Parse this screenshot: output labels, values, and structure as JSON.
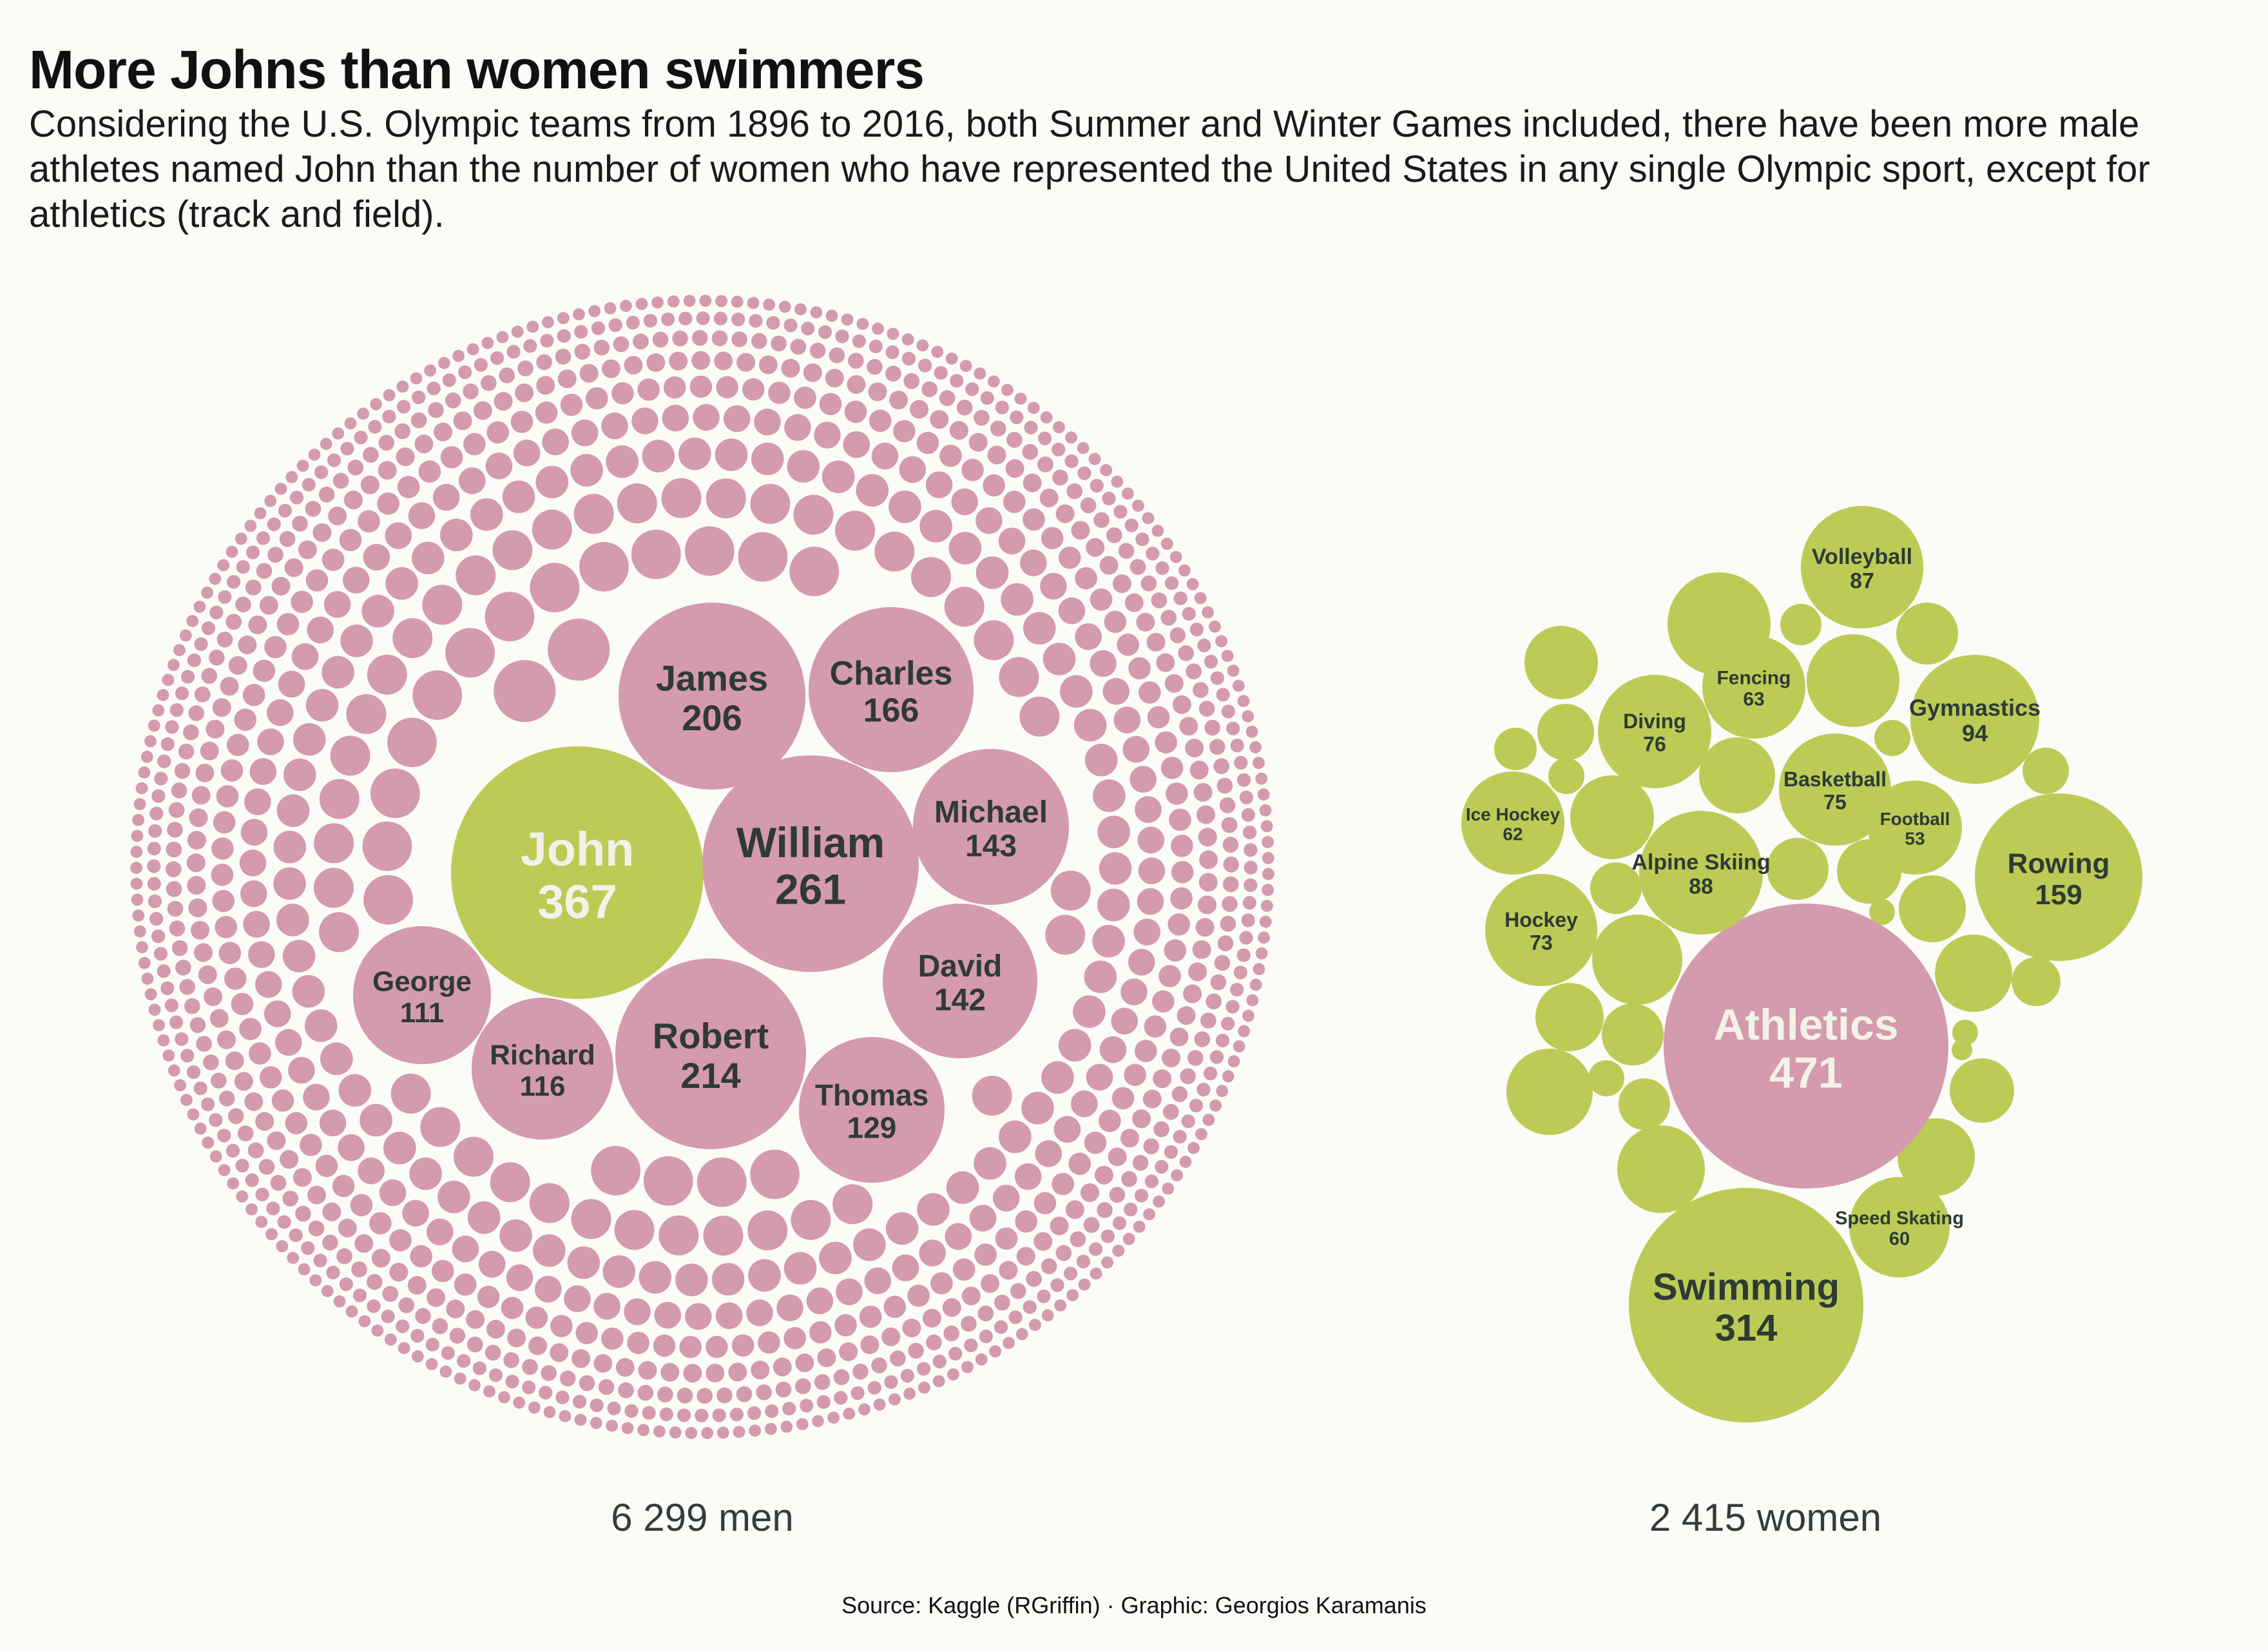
{
  "header": {
    "title": "More Johns than women swimmers",
    "subtitle": "Considering the U.S. Olympic teams from 1896 to 2016, both Summer and Winter Games included, there have been more male athletes named John than the number of women who have represented the United States in any single Olympic sport, except for athletics (track and field)."
  },
  "colors": {
    "pink": "#d49aae",
    "green": "#bccb55",
    "dark_text": "#2f3a35",
    "light_text": "#f2f2e8"
  },
  "chart_data": [
    {
      "type": "bubble",
      "total_label": "6 299 men",
      "highlight": "John",
      "labeled": [
        {
          "label": "John",
          "value": "367"
        },
        {
          "label": "William",
          "value": "261"
        },
        {
          "label": "Robert",
          "value": "214"
        },
        {
          "label": "James",
          "value": "206"
        },
        {
          "label": "Charles",
          "value": "166"
        },
        {
          "label": "Michael",
          "value": "143"
        },
        {
          "label": "David",
          "value": "142"
        },
        {
          "label": "Thomas",
          "value": "129"
        },
        {
          "label": "Richard",
          "value": "116"
        },
        {
          "label": "George",
          "value": "111"
        }
      ]
    },
    {
      "type": "bubble",
      "total_label": "2 415 women",
      "highlight": "Athletics",
      "labeled": [
        {
          "label": "Athletics",
          "value": "471"
        },
        {
          "label": "Swimming",
          "value": "314"
        },
        {
          "label": "Rowing",
          "value": "159"
        },
        {
          "label": "Gymnastics",
          "value": "94"
        },
        {
          "label": "Alpine Skiing",
          "value": "88"
        },
        {
          "label": "Volleyball",
          "value": "87"
        },
        {
          "label": "Diving",
          "value": "76"
        },
        {
          "label": "Basketball",
          "value": "75"
        },
        {
          "label": "Hockey",
          "value": "73"
        },
        {
          "label": "Fencing",
          "value": "63"
        },
        {
          "label": "Ice Hockey",
          "value": "62"
        },
        {
          "label": "Speed Skating",
          "value": "60"
        },
        {
          "label": "Football",
          "value": "53"
        }
      ]
    }
  ],
  "source": "Source: Kaggle (RGriffin) · Graphic: Georgios Karamanis"
}
